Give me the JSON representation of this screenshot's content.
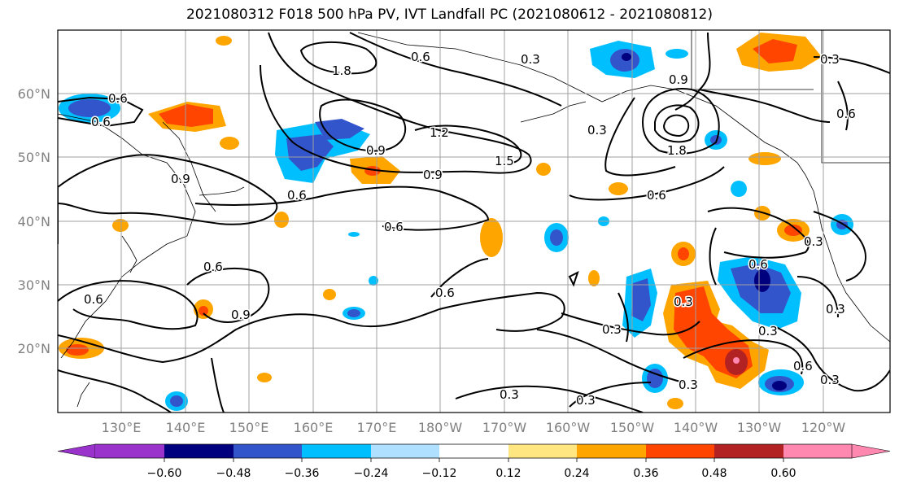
{
  "title": "2021080312 F018 500 hPa PV, IVT Landfall PC (2021080612 - 2021080812)",
  "lat_labels": [
    "60°N",
    "50°N",
    "40°N",
    "30°N",
    "20°N"
  ],
  "lon_labels": [
    "130°E",
    "140°E",
    "150°E",
    "160°E",
    "170°E",
    "180°W",
    "170°W",
    "160°W",
    "150°W",
    "140°W",
    "130°W",
    "120°W"
  ],
  "contour_labels": [
    "0.6",
    "0.6",
    "1.8",
    "0.6",
    "0.9",
    "0.3",
    "0.9",
    "1.2",
    "1.5",
    "0.9",
    "1.8",
    "0.6",
    "0.9",
    "0.6",
    "0.6",
    "0.6",
    "0.6",
    "0.6",
    "0.9",
    "0.6",
    "0.3",
    "0.3",
    "0.6",
    "0.3",
    "0.3",
    "0.3",
    "0.6",
    "0.3",
    "0.3",
    "0.3",
    "0.3",
    "0.3",
    "0.3"
  ],
  "colorbar": {
    "colors": [
      "#9933cc",
      "#00007f",
      "#3355cc",
      "#00bfff",
      "#b0e0ff",
      "#ffffff",
      "#ffe680",
      "#ffa500",
      "#ff4500",
      "#b22222",
      "#ff88b0"
    ],
    "tick_labels": [
      "−0.60",
      "−0.48",
      "−0.36",
      "−0.24",
      "−0.12",
      "0.12",
      "0.24",
      "0.36",
      "0.48",
      "0.60"
    ]
  },
  "colors": {
    "frame": "#000000",
    "grid": "#a0a0a0",
    "contour": "#000000",
    "label": "#808080"
  }
}
